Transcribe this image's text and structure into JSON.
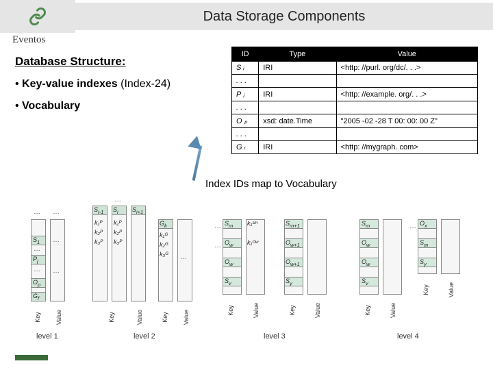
{
  "header": {
    "title": "Data Storage Components",
    "brand": "Eventos"
  },
  "left": {
    "subtitle": "Database Structure:",
    "bullets": [
      {
        "prefix": "•  ",
        "bold": "Key-value indexes",
        "rest": " (Index-24)"
      },
      {
        "prefix": "•  ",
        "bold": "Vocabulary",
        "rest": ""
      }
    ]
  },
  "vocab": {
    "headers": [
      "ID",
      "Type",
      "Value"
    ],
    "rows": [
      [
        "S ᵢ",
        "IRI",
        "<http: //purl. org/dc/. . .>"
      ],
      [
        ". . .",
        "",
        ""
      ],
      [
        "P ⱼ",
        "IRI",
        "<http: //example. org/. . .>"
      ],
      [
        ". . .",
        "",
        ""
      ],
      [
        "O ₚ",
        "xsd: date.Time",
        "\"2005 -02 -28 T 00: 00: 00 Z\""
      ],
      [
        ". . .",
        "",
        ""
      ],
      [
        "G ᵣ",
        "IRI",
        "<http: //mygraph. com>"
      ]
    ]
  },
  "caption": "Index IDs map to Vocabulary",
  "levels": {
    "l1": "level 1",
    "l2": "level 2",
    "l3": "level 3",
    "l4": "level 4",
    "key": "Key",
    "value": "Value"
  },
  "colors": {
    "header_bg": "#e5e5e5",
    "table_header": "#000000",
    "hl": "#cfe4d6",
    "arrow": "#5a8ab0",
    "progress": "#3a6a3a"
  }
}
